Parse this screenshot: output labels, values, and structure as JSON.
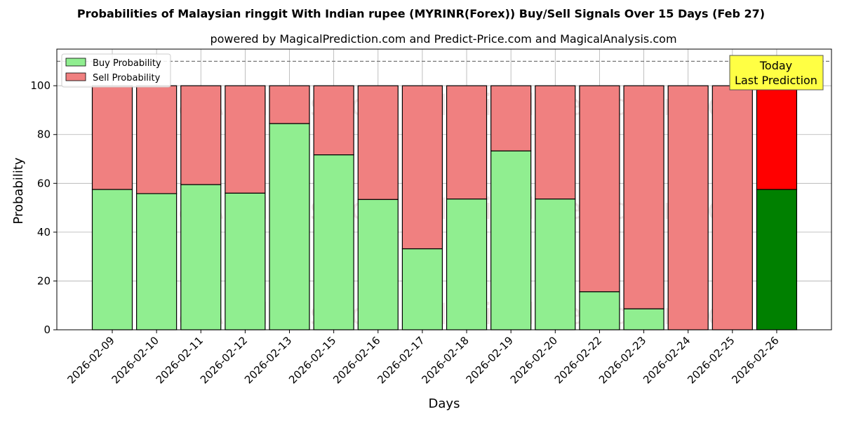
{
  "chart_data": {
    "type": "bar",
    "title": "Probabilities of Malaysian ringgit With Indian rupee (MYRINR(Forex)) Buy/Sell Signals Over 15 Days (Feb 27)",
    "subtitle": "powered by MagicalPrediction.com and Predict-Price.com and MagicalAnalysis.com",
    "xlabel": "Days",
    "ylabel": "Probability",
    "ylim": [
      0,
      115
    ],
    "yticks": [
      0,
      20,
      40,
      60,
      80,
      100
    ],
    "grid": true,
    "legend_position": "top-left",
    "stacked": true,
    "categories": [
      "2026-02-09",
      "2026-02-10",
      "2026-02-11",
      "2026-02-12",
      "2026-02-13",
      "2026-02-15",
      "2026-02-16",
      "2026-02-17",
      "2026-02-18",
      "2026-02-19",
      "2026-02-20",
      "2026-02-22",
      "2026-02-23",
      "2026-02-24",
      "2026-02-25",
      "2026-02-26"
    ],
    "series": [
      {
        "name": "Buy Probability",
        "color": "#90ee90",
        "values": [
          57.5,
          55.8,
          59.5,
          56.0,
          84.5,
          71.7,
          53.4,
          33.2,
          53.6,
          73.3,
          53.6,
          15.6,
          8.6,
          0,
          0,
          57.5
        ]
      },
      {
        "name": "Sell Probability",
        "color": "#f08080",
        "values": [
          42.5,
          44.2,
          40.5,
          44.0,
          15.5,
          28.3,
          46.6,
          66.8,
          46.4,
          26.7,
          46.4,
          84.4,
          91.4,
          100,
          100,
          42.5
        ]
      }
    ],
    "highlight_colors": {
      "buy": "#008000",
      "sell": "#ff0000"
    },
    "reference_line": 110,
    "annotation": {
      "line1": "Today",
      "line2": "Last Prediction",
      "color": "#ffff44"
    },
    "watermarks": [
      "MagicalAnalysis.com",
      "MagicalPrediction.com"
    ]
  }
}
